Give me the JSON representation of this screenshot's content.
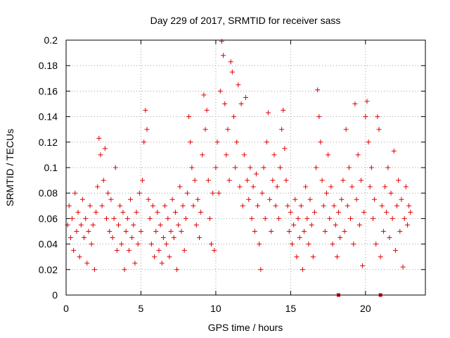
{
  "chart_data": {
    "type": "scatter",
    "title": "Day 229 of 2017, SRMTID for receiver sass",
    "xlabel": "GPS time / hours",
    "ylabel": "SRMTID / TECUs",
    "xlim": [
      0,
      24
    ],
    "ylim": [
      0,
      0.2
    ],
    "xticks": [
      0,
      5,
      10,
      15,
      20
    ],
    "xtick_labels": [
      "0",
      "5",
      "10",
      "15",
      "20"
    ],
    "yticks": [
      0,
      0.02,
      0.04,
      0.06,
      0.08,
      0.1,
      0.12,
      0.14,
      0.16,
      0.18,
      0.2
    ],
    "ytick_labels": [
      "0",
      "0.02",
      "0.04",
      "0.06",
      "0.08",
      "0.1",
      "0.12",
      "0.14",
      "0.16",
      "0.18",
      "0.2"
    ],
    "grid": true,
    "marker": "+",
    "series": [
      {
        "name": "SRMTID",
        "color": "#e00000",
        "points": [
          [
            0.1,
            0.055
          ],
          [
            0.2,
            0.07
          ],
          [
            0.3,
            0.045
          ],
          [
            0.4,
            0.06
          ],
          [
            0.5,
            0.035
          ],
          [
            0.6,
            0.08
          ],
          [
            0.7,
            0.05
          ],
          [
            0.8,
            0.065
          ],
          [
            0.9,
            0.03
          ],
          [
            1.0,
            0.055
          ],
          [
            1.1,
            0.075
          ],
          [
            1.2,
            0.045
          ],
          [
            1.3,
            0.06
          ],
          [
            1.4,
            0.025
          ],
          [
            1.5,
            0.05
          ],
          [
            1.6,
            0.07
          ],
          [
            1.7,
            0.04
          ],
          [
            1.8,
            0.055
          ],
          [
            1.9,
            0.02
          ],
          [
            2.0,
            0.065
          ],
          [
            2.1,
            0.085
          ],
          [
            2.2,
            0.123
          ],
          [
            2.3,
            0.11
          ],
          [
            2.4,
            0.07
          ],
          [
            2.5,
            0.09
          ],
          [
            2.6,
            0.115
          ],
          [
            2.7,
            0.06
          ],
          [
            2.8,
            0.08
          ],
          [
            2.9,
            0.05
          ],
          [
            3.0,
            0.075
          ],
          [
            3.1,
            0.045
          ],
          [
            3.2,
            0.06
          ],
          [
            3.3,
            0.1
          ],
          [
            3.4,
            0.035
          ],
          [
            3.5,
            0.055
          ],
          [
            3.6,
            0.07
          ],
          [
            3.7,
            0.04
          ],
          [
            3.8,
            0.065
          ],
          [
            3.9,
            0.02
          ],
          [
            4.0,
            0.05
          ],
          [
            4.1,
            0.06
          ],
          [
            4.2,
            0.035
          ],
          [
            4.3,
            0.075
          ],
          [
            4.4,
            0.045
          ],
          [
            4.5,
            0.055
          ],
          [
            4.6,
            0.025
          ],
          [
            4.7,
            0.065
          ],
          [
            4.8,
            0.04
          ],
          [
            4.9,
            0.08
          ],
          [
            5.0,
            0.05
          ],
          [
            5.1,
            0.09
          ],
          [
            5.2,
            0.12
          ],
          [
            5.3,
            0.145
          ],
          [
            5.4,
            0.13
          ],
          [
            5.5,
            0.075
          ],
          [
            5.6,
            0.06
          ],
          [
            5.7,
            0.04
          ],
          [
            5.8,
            0.07
          ],
          [
            5.9,
            0.03
          ],
          [
            6.0,
            0.05
          ],
          [
            6.1,
            0.065
          ],
          [
            6.2,
            0.035
          ],
          [
            6.3,
            0.055
          ],
          [
            6.4,
            0.025
          ],
          [
            6.5,
            0.045
          ],
          [
            6.6,
            0.07
          ],
          [
            6.7,
            0.04
          ],
          [
            6.8,
            0.06
          ],
          [
            6.9,
            0.03
          ],
          [
            7.0,
            0.05
          ],
          [
            7.1,
            0.075
          ],
          [
            7.2,
            0.045
          ],
          [
            7.3,
            0.065
          ],
          [
            7.4,
            0.02
          ],
          [
            7.5,
            0.055
          ],
          [
            7.6,
            0.085
          ],
          [
            7.7,
            0.05
          ],
          [
            7.8,
            0.07
          ],
          [
            7.9,
            0.035
          ],
          [
            8.0,
            0.06
          ],
          [
            8.1,
            0.08
          ],
          [
            8.2,
            0.14
          ],
          [
            8.3,
            0.12
          ],
          [
            8.4,
            0.1
          ],
          [
            8.5,
            0.07
          ],
          [
            8.6,
            0.09
          ],
          [
            8.7,
            0.055
          ],
          [
            8.8,
            0.075
          ],
          [
            8.9,
            0.045
          ],
          [
            9.0,
            0.065
          ],
          [
            9.1,
            0.11
          ],
          [
            9.2,
            0.157
          ],
          [
            9.3,
            0.13
          ],
          [
            9.4,
            0.145
          ],
          [
            9.5,
            0.09
          ],
          [
            9.6,
            0.06
          ],
          [
            9.7,
            0.04
          ],
          [
            9.8,
            0.08
          ],
          [
            9.9,
            0.035
          ],
          [
            10.0,
            0.1
          ],
          [
            10.1,
            0.12
          ],
          [
            10.2,
            0.08
          ],
          [
            10.3,
            0.16
          ],
          [
            10.4,
            0.199
          ],
          [
            10.5,
            0.188
          ],
          [
            10.6,
            0.15
          ],
          [
            10.7,
            0.11
          ],
          [
            10.8,
            0.13
          ],
          [
            10.9,
            0.09
          ],
          [
            11.0,
            0.183
          ],
          [
            11.1,
            0.175
          ],
          [
            11.2,
            0.14
          ],
          [
            11.3,
            0.1
          ],
          [
            11.4,
            0.12
          ],
          [
            11.5,
            0.165
          ],
          [
            11.6,
            0.085
          ],
          [
            11.7,
            0.15
          ],
          [
            11.8,
            0.07
          ],
          [
            11.9,
            0.11
          ],
          [
            12.0,
            0.155
          ],
          [
            12.1,
            0.09
          ],
          [
            12.2,
            0.075
          ],
          [
            12.3,
            0.1
          ],
          [
            12.4,
            0.06
          ],
          [
            12.5,
            0.085
          ],
          [
            12.6,
            0.05
          ],
          [
            12.7,
            0.095
          ],
          [
            12.8,
            0.07
          ],
          [
            12.9,
            0.04
          ],
          [
            13.0,
            0.02
          ],
          [
            13.1,
            0.08
          ],
          [
            13.2,
            0.1
          ],
          [
            13.3,
            0.06
          ],
          [
            13.4,
            0.12
          ],
          [
            13.5,
            0.143
          ],
          [
            13.6,
            0.075
          ],
          [
            13.7,
            0.05
          ],
          [
            13.8,
            0.09
          ],
          [
            13.9,
            0.11
          ],
          [
            14.0,
            0.07
          ],
          [
            14.1,
            0.085
          ],
          [
            14.2,
            0.06
          ],
          [
            14.3,
            0.1
          ],
          [
            14.4,
            0.13
          ],
          [
            14.5,
            0.145
          ],
          [
            14.6,
            0.115
          ],
          [
            14.7,
            0.09
          ],
          [
            14.8,
            0.07
          ],
          [
            14.9,
            0.05
          ],
          [
            15.0,
            0.065
          ],
          [
            15.1,
            0.04
          ],
          [
            15.2,
            0.055
          ],
          [
            15.3,
            0.075
          ],
          [
            15.4,
            0.03
          ],
          [
            15.5,
            0.06
          ],
          [
            15.6,
            0.045
          ],
          [
            15.7,
            0.07
          ],
          [
            15.8,
            0.02
          ],
          [
            15.9,
            0.05
          ],
          [
            16.0,
            0.085
          ],
          [
            16.1,
            0.06
          ],
          [
            16.2,
            0.04
          ],
          [
            16.3,
            0.075
          ],
          [
            16.4,
            0.055
          ],
          [
            16.5,
            0.03
          ],
          [
            16.6,
            0.065
          ],
          [
            16.7,
            0.1
          ],
          [
            16.8,
            0.161
          ],
          [
            16.9,
            0.14
          ],
          [
            17.0,
            0.12
          ],
          [
            17.1,
            0.09
          ],
          [
            17.2,
            0.07
          ],
          [
            17.3,
            0.05
          ],
          [
            17.4,
            0.08
          ],
          [
            17.5,
            0.11
          ],
          [
            17.6,
            0.06
          ],
          [
            17.7,
            0.085
          ],
          [
            17.8,
            0.04
          ],
          [
            17.9,
            0.07
          ],
          [
            18.0,
            0.055
          ],
          [
            18.1,
            0.03
          ],
          [
            18.2,
            0.065
          ],
          [
            18.3,
            0.045
          ],
          [
            18.4,
            0.075
          ],
          [
            18.5,
            0.09
          ],
          [
            18.6,
            0.05
          ],
          [
            18.7,
            0.13
          ],
          [
            18.8,
            0.07
          ],
          [
            18.9,
            0.1
          ],
          [
            19.0,
            0.06
          ],
          [
            19.1,
            0.085
          ],
          [
            19.2,
            0.04
          ],
          [
            19.3,
            0.15
          ],
          [
            19.4,
            0.075
          ],
          [
            19.5,
            0.11
          ],
          [
            19.6,
            0.055
          ],
          [
            19.7,
            0.09
          ],
          [
            19.8,
            0.023
          ],
          [
            19.9,
            0.065
          ],
          [
            20.0,
            0.14
          ],
          [
            20.1,
            0.152
          ],
          [
            20.2,
            0.12
          ],
          [
            20.3,
            0.085
          ],
          [
            20.4,
            0.1
          ],
          [
            20.5,
            0.06
          ],
          [
            20.6,
            0.075
          ],
          [
            20.7,
            0.04
          ],
          [
            20.8,
            0.14
          ],
          [
            20.9,
            0.13
          ],
          [
            21.0,
            0.03
          ],
          [
            21.1,
            0.07
          ],
          [
            21.2,
            0.05
          ],
          [
            21.3,
            0.085
          ],
          [
            21.4,
            0.065
          ],
          [
            21.5,
            0.1
          ],
          [
            21.6,
            0.045
          ],
          [
            21.7,
            0.08
          ],
          [
            21.8,
            0.06
          ],
          [
            21.9,
            0.113
          ],
          [
            22.0,
            0.035
          ],
          [
            22.1,
            0.07
          ],
          [
            22.2,
            0.09
          ],
          [
            22.3,
            0.05
          ],
          [
            22.4,
            0.075
          ],
          [
            22.5,
            0.022
          ],
          [
            22.6,
            0.06
          ],
          [
            22.7,
            0.085
          ],
          [
            22.8,
            0.055
          ],
          [
            22.9,
            0.07
          ],
          [
            23.0,
            0.065
          ]
        ]
      }
    ],
    "zero_markers": [
      18.2,
      21.0
    ]
  }
}
